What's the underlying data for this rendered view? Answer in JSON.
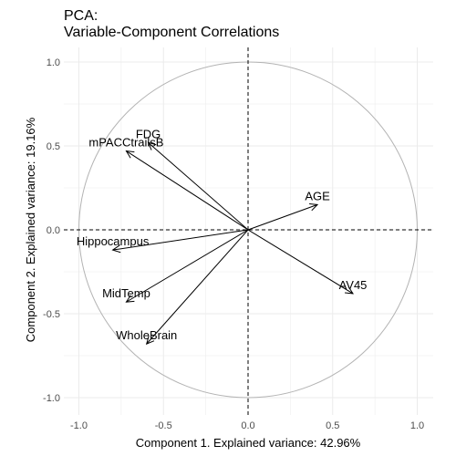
{
  "chart_data": {
    "type": "scatter",
    "title_line1": "PCA:",
    "title_line2": "Variable-Component Correlations",
    "xlabel": "Component 1. Explained variance: 42.96%",
    "ylabel": "Component 2. Explained variance: 19.16%",
    "xlim": [
      -1.0,
      1.0
    ],
    "ylim": [
      -1.0,
      1.0
    ],
    "x_ticks": [
      -1.0,
      -0.5,
      0.0,
      0.5,
      1.0
    ],
    "x_tick_labels": [
      "-1.0",
      "-0.5",
      "0.0",
      "0.5",
      "1.0"
    ],
    "y_ticks": [
      -1.0,
      -0.5,
      0.0,
      0.5,
      1.0
    ],
    "y_tick_labels": [
      "-1.0",
      "-0.5",
      "0.0",
      "0.5",
      "1.0"
    ],
    "grid": true,
    "unit_circle": true,
    "variables": [
      {
        "name": "FDG",
        "x": -0.59,
        "y": 0.52
      },
      {
        "name": "mPACCtrailsB",
        "x": -0.72,
        "y": 0.47
      },
      {
        "name": "AGE",
        "x": 0.41,
        "y": 0.15
      },
      {
        "name": "Hippocampus",
        "x": -0.8,
        "y": -0.12
      },
      {
        "name": "AV45",
        "x": 0.62,
        "y": -0.38
      },
      {
        "name": "MidTemp",
        "x": -0.72,
        "y": -0.43
      },
      {
        "name": "WholeBrain",
        "x": -0.6,
        "y": -0.68
      }
    ],
    "colors": {
      "grid": "#ebebeb",
      "circle": "#b3b3b3",
      "arrow": "#000000",
      "zero_line": "#000000",
      "tick_text": "#4d4d4d"
    }
  }
}
